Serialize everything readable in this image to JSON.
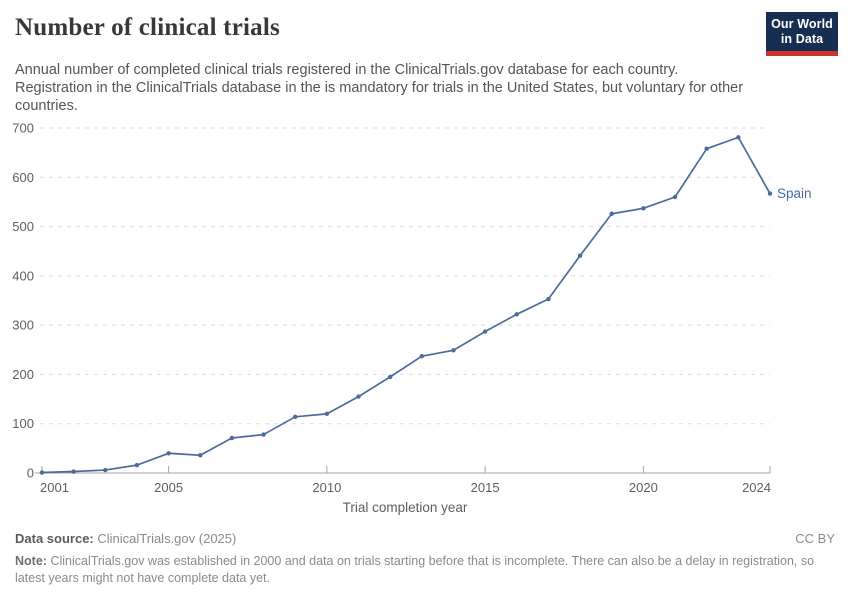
{
  "header": {
    "title": "Number of clinical trials",
    "subtitle": "Annual number of completed clinical trials registered in the ClinicalTrials.gov database for each country. Registration in the ClinicalTrials database in the is mandatory for trials in the United States, but voluntary for other countries.",
    "logo": {
      "line1": "Our World",
      "line2": "in Data"
    }
  },
  "chart_data": {
    "type": "line",
    "title": "Number of clinical trials",
    "xlabel": "Trial completion year",
    "ylabel": "",
    "x": [
      2001,
      2002,
      2003,
      2004,
      2005,
      2006,
      2007,
      2008,
      2009,
      2010,
      2011,
      2012,
      2013,
      2014,
      2015,
      2016,
      2017,
      2018,
      2019,
      2020,
      2021,
      2022,
      2023,
      2024
    ],
    "series": [
      {
        "name": "Spain",
        "color": "#4c6a9c",
        "values": [
          1,
          3,
          6,
          16,
          40,
          36,
          71,
          78,
          114,
          120,
          155,
          195,
          237,
          249,
          287,
          322,
          353,
          441,
          526,
          537,
          560,
          658,
          681,
          567
        ]
      }
    ],
    "ylim": [
      0,
      700
    ],
    "yticks": [
      0,
      100,
      200,
      300,
      400,
      500,
      600,
      700
    ],
    "xticks": [
      2001,
      2005,
      2010,
      2015,
      2020,
      2024
    ],
    "grid": true,
    "grid_style": "dashed",
    "legend_position": "end-of-line"
  },
  "footer": {
    "data_source_label": "Data source:",
    "data_source_value": "ClinicalTrials.gov (2025)",
    "license": "CC BY",
    "note_label": "Note:",
    "note_text": "ClinicalTrials.gov was established in 2000 and data on trials starting before that is incomplete. There can also be a delay in registration, so latest years might not have complete data yet."
  },
  "colors": {
    "accent_line": "#4c6a9c",
    "grid": "#dcdcdc",
    "axis": "#a3a3a3",
    "logo_navy": "#152e52",
    "logo_red": "#c9342c"
  }
}
